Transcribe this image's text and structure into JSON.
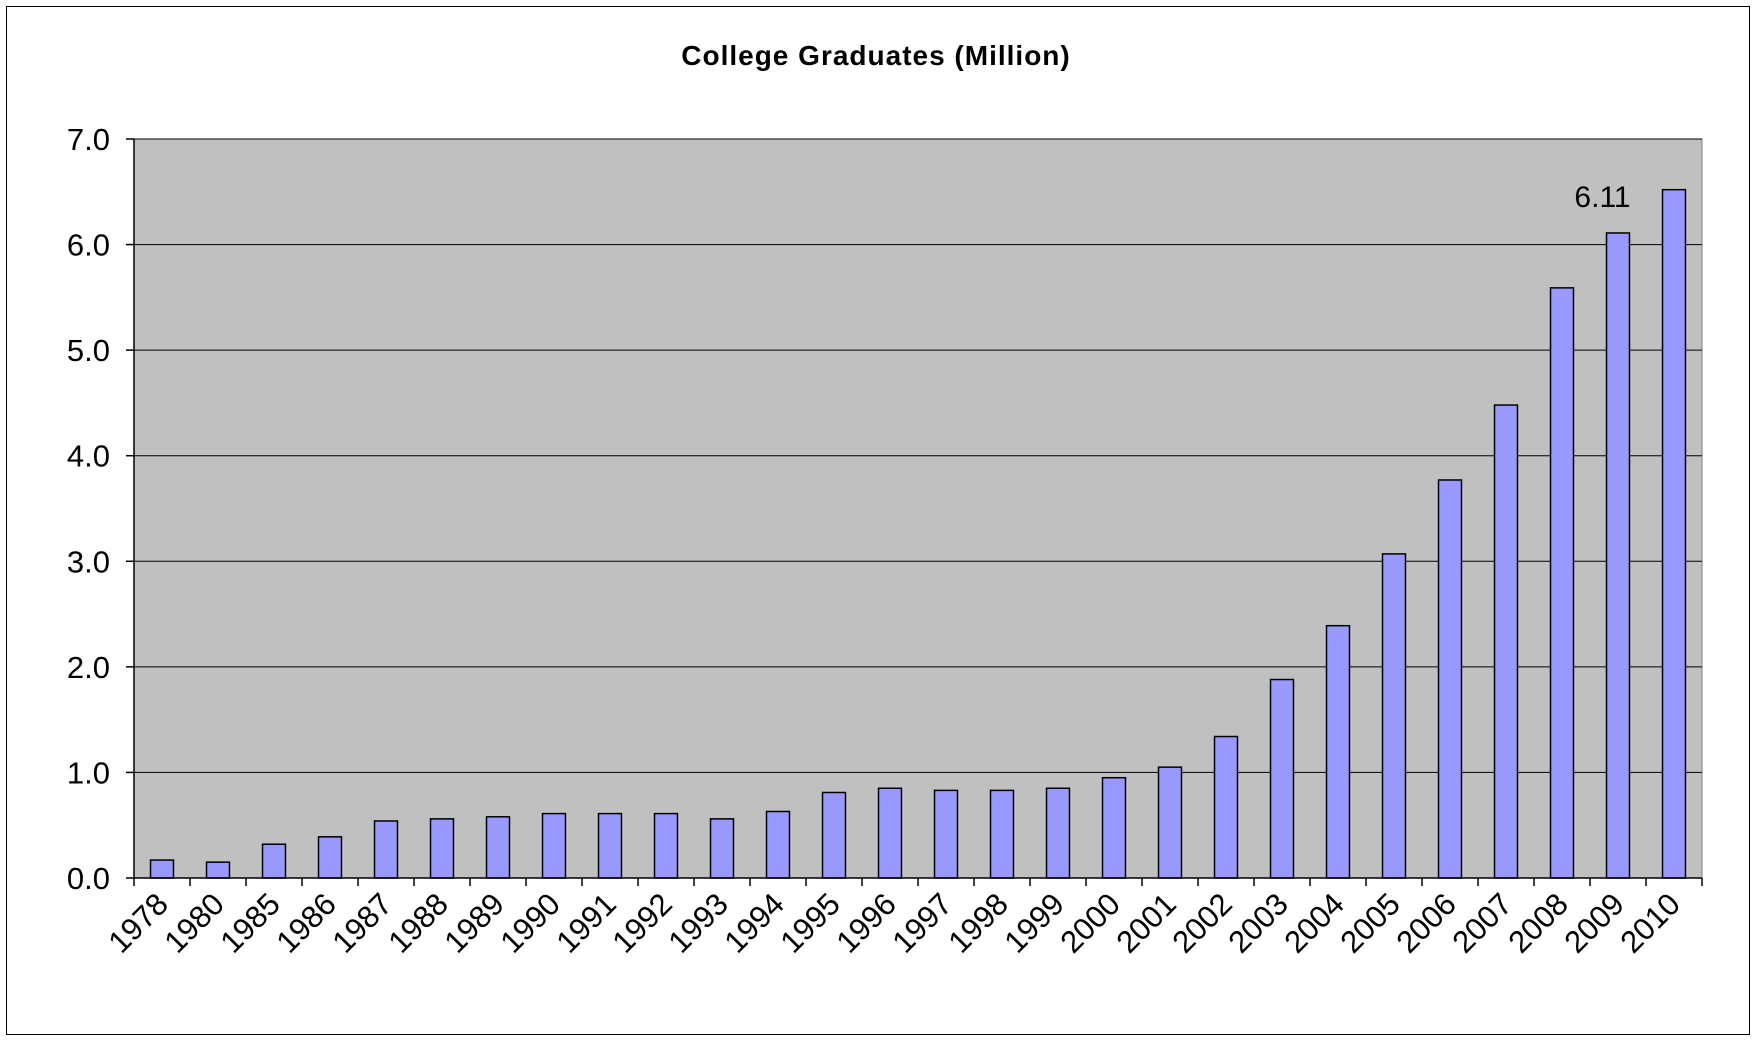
{
  "chart_data": {
    "type": "bar",
    "title": "College Graduates (Million)",
    "xlabel": "",
    "ylabel": "",
    "categories": [
      "1978",
      "1980",
      "1985",
      "1986",
      "1987",
      "1988",
      "1989",
      "1990",
      "1991",
      "1992",
      "1993",
      "1994",
      "1995",
      "1996",
      "1997",
      "1998",
      "1999",
      "2000",
      "2001",
      "2002",
      "2003",
      "2004",
      "2005",
      "2006",
      "2007",
      "2008",
      "2009",
      "2010"
    ],
    "values": [
      0.17,
      0.15,
      0.32,
      0.39,
      0.54,
      0.56,
      0.58,
      0.61,
      0.61,
      0.61,
      0.56,
      0.63,
      0.81,
      0.85,
      0.83,
      0.83,
      0.85,
      0.95,
      1.05,
      1.34,
      1.88,
      2.39,
      3.07,
      3.77,
      4.48,
      5.59,
      6.11,
      6.52
    ],
    "data_labels": [
      {
        "category": "2009",
        "text": "6.11"
      }
    ],
    "ylim": [
      0,
      7
    ],
    "yticks": [
      "0.0",
      "1.0",
      "2.0",
      "3.0",
      "4.0",
      "5.0",
      "6.0",
      "7.0"
    ],
    "grid": true,
    "legend": "none",
    "colors": {
      "bar_fill": "#9999ff",
      "bar_stroke": "#000000",
      "plot_background": "#c0c0c0",
      "gridline": "#000000"
    }
  }
}
